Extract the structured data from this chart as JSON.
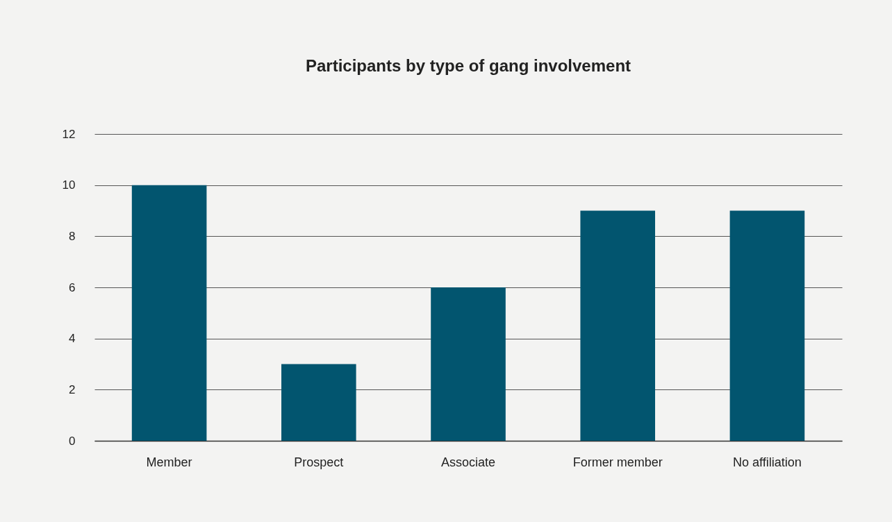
{
  "chart_data": {
    "type": "bar",
    "title": "Participants by type of gang involvement",
    "categories": [
      "Member",
      "Prospect",
      "Associate",
      "Former member",
      "No affiliation"
    ],
    "values": [
      10,
      3,
      6,
      9,
      9
    ],
    "color": "#02556f",
    "ylim": [
      0,
      12
    ],
    "yticks": [
      0,
      2,
      4,
      6,
      8,
      10,
      12
    ],
    "grid": "y"
  }
}
